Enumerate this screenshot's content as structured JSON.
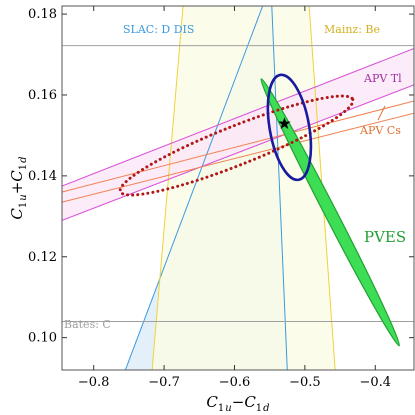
{
  "chart_data": {
    "type": "scatter",
    "xlabel_main": "C",
    "xlabel_sub1": "1",
    "xlabel_sub1b": "u",
    "xlabel_op": "−",
    "xlabel_main2": "C",
    "xlabel_sub2": "1",
    "xlabel_sub2b": "d",
    "ylabel_main": "C",
    "ylabel_sub1": "1",
    "ylabel_sub1b": "u",
    "ylabel_op": "+",
    "ylabel_main2": "C",
    "ylabel_sub2": "1",
    "ylabel_sub2b": "d",
    "xlim": [
      -0.845,
      -0.345
    ],
    "ylim": [
      0.092,
      0.182
    ],
    "xticks": [
      "-0.8",
      "-0.7",
      "-0.6",
      "-0.5",
      "-0.4"
    ],
    "yticks": [
      "0.10",
      "0.12",
      "0.14",
      "0.16",
      "0.18"
    ],
    "xtick_values": [
      -0.8,
      -0.7,
      -0.6,
      -0.5,
      -0.4
    ],
    "ytick_values": [
      0.1,
      0.12,
      0.14,
      0.16,
      0.18
    ],
    "constraints": {
      "slac": {
        "label": "SLAC: D DIS",
        "color": "#3a9ae0",
        "fill": "#e3eff9",
        "left": [
          [
            -0.755,
            0.092
          ],
          [
            -0.56,
            0.182
          ]
        ],
        "right": [
          [
            -0.525,
            0.092
          ],
          [
            -0.547,
            0.182
          ]
        ]
      },
      "mainz": {
        "label": "Mainz: Be",
        "color": "#f0d23c",
        "fill": "#fbfbe6",
        "left": [
          [
            -0.717,
            0.092
          ],
          [
            -0.673,
            0.182
          ]
        ],
        "right": [
          [
            -0.457,
            0.092
          ],
          [
            -0.494,
            0.182
          ]
        ]
      },
      "apv_tl": {
        "label": "APV Tl",
        "color": "#d94fd9",
        "fill": "#fbe6f7",
        "lower": [
          [
            -0.845,
            0.129
          ],
          [
            -0.345,
            0.1625
          ]
        ],
        "upper": [
          [
            -0.845,
            0.1375
          ],
          [
            -0.345,
            0.1715
          ]
        ]
      },
      "apv_cs": {
        "label": "APV Cs",
        "color": "#f08050",
        "lower": [
          [
            -0.845,
            0.1335
          ],
          [
            -0.345,
            0.1555
          ]
        ],
        "upper": [
          [
            -0.845,
            0.136
          ],
          [
            -0.345,
            0.1585
          ]
        ]
      },
      "bates": {
        "label": "Bates: C",
        "color": "#a0a0a0",
        "lines_y": [
          0.104,
          0.1722
        ]
      }
    },
    "pves_ellipse": {
      "label": "PVES",
      "cx": -0.464,
      "cy": 0.131,
      "semi_major_along": [
        0.098,
        -0.033
      ],
      "semi_minor": 0.0085,
      "color": "#22a033",
      "fill": "#3ddd55"
    },
    "combined_ellipse": {
      "cx": -0.522,
      "cy": 0.152,
      "rx_data": 0.028,
      "ry_data": 0.0047,
      "color": "#1a1aa0"
    },
    "dotted_ellipse": {
      "cx": -0.597,
      "cy": 0.1475,
      "rx_data": 0.165,
      "ry_data": 0.0048,
      "tilt_slope": 0.0691,
      "color": "#b01818"
    },
    "standard_model_point": {
      "x": -0.529,
      "y": 0.1529,
      "marker": "star"
    }
  }
}
